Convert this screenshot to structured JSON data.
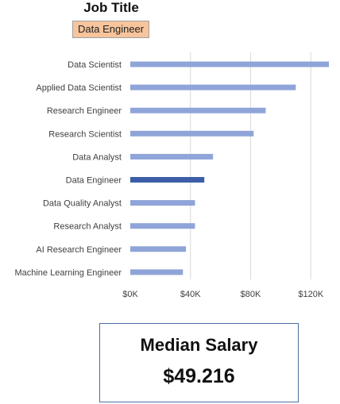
{
  "filter": {
    "title": "Job Title",
    "selected": "Data Engineer",
    "selected_bg": "#f7c49c"
  },
  "colors": {
    "bar": "#8fa4d8",
    "highlight": "#3c5ea8",
    "grid": "#d9d9d9",
    "text": "#404040"
  },
  "chart_data": {
    "type": "bar",
    "orientation": "horizontal",
    "categories": [
      "Data Scientist",
      "Applied Data Scientist",
      "Research Engineer",
      "Research Scientist",
      "Data Analyst",
      "Data Engineer",
      "Data Quality Analyst",
      "Research Analyst",
      "AI Research Engineer",
      "Machine Learning Engineer"
    ],
    "values": [
      132000,
      110000,
      90000,
      82000,
      55000,
      49216,
      43000,
      43000,
      37000,
      35000
    ],
    "highlight": "Data Engineer",
    "x_ticks": [
      0,
      40000,
      80000,
      120000
    ],
    "x_tick_labels": [
      "$0K",
      "$40K",
      "$80K",
      "$120K"
    ],
    "xlim": [
      0,
      132000
    ],
    "grid": true,
    "title": "",
    "xlabel": "",
    "ylabel": ""
  },
  "kpi": {
    "title": "Median Salary",
    "value": "$49.216"
  }
}
